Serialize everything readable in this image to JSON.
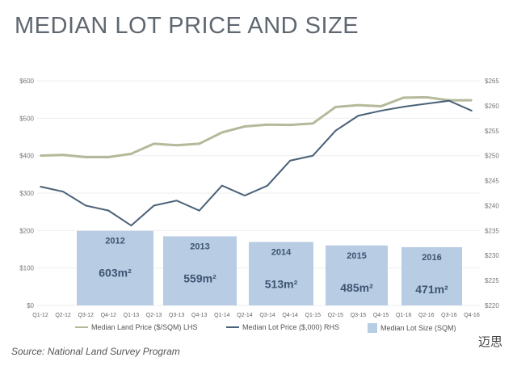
{
  "chart_data": {
    "type": "line+bar",
    "title": "MEDIAN LOT PRICE AND SIZE",
    "categories": [
      "Q1-12",
      "Q2-12",
      "Q3-12",
      "Q4-12",
      "Q1-13",
      "Q2-13",
      "Q3-13",
      "Q4-13",
      "Q1-14",
      "Q2-14",
      "Q3-14",
      "Q4-14",
      "Q1-15",
      "Q2-15",
      "Q3-15",
      "Q4-15",
      "Q1-16",
      "Q2-16",
      "Q3-16",
      "Q4-16"
    ],
    "left_axis": {
      "ylim": [
        0,
        600
      ],
      "ticks": [
        "$0",
        "$100",
        "$200",
        "$300",
        "$400",
        "$500",
        "$600"
      ]
    },
    "right_axis": {
      "ylim": [
        220,
        265
      ],
      "ticks": [
        "$220",
        "$225",
        "$230",
        "$235",
        "$240",
        "$245",
        "$250",
        "$255",
        "$260",
        "$265"
      ]
    },
    "series": [
      {
        "name": "Median Land Price ($/SQM) LHS",
        "axis": "left",
        "color": "#b5b99a",
        "values": [
          400,
          402,
          396,
          396,
          405,
          432,
          428,
          432,
          462,
          478,
          483,
          482,
          486,
          530,
          535,
          532,
          555,
          556,
          548,
          548
        ]
      },
      {
        "name": "Median Lot Price ($,000) RHS",
        "axis": "right",
        "color": "#4a6178",
        "values": [
          243.8,
          242.8,
          240,
          239,
          236,
          240,
          241,
          239,
          244,
          242,
          244,
          249,
          250,
          255,
          258,
          259,
          259.8,
          260.4,
          261,
          259
        ]
      }
    ],
    "bars": {
      "name": "Median Lot Size (SQM)",
      "color": "#b8cce4",
      "items": [
        {
          "year": "2012",
          "label": "603m²",
          "value": 603
        },
        {
          "year": "2013",
          "label": "559m²",
          "value": 559
        },
        {
          "year": "2014",
          "label": "513m²",
          "value": 513
        },
        {
          "year": "2015",
          "label": "485m²",
          "value": 485
        },
        {
          "year": "2016",
          "label": "471m²",
          "value": 471
        }
      ]
    },
    "legend_placement": "bottom"
  },
  "source": "Source: National Land Survey Program",
  "brand": "迈思"
}
